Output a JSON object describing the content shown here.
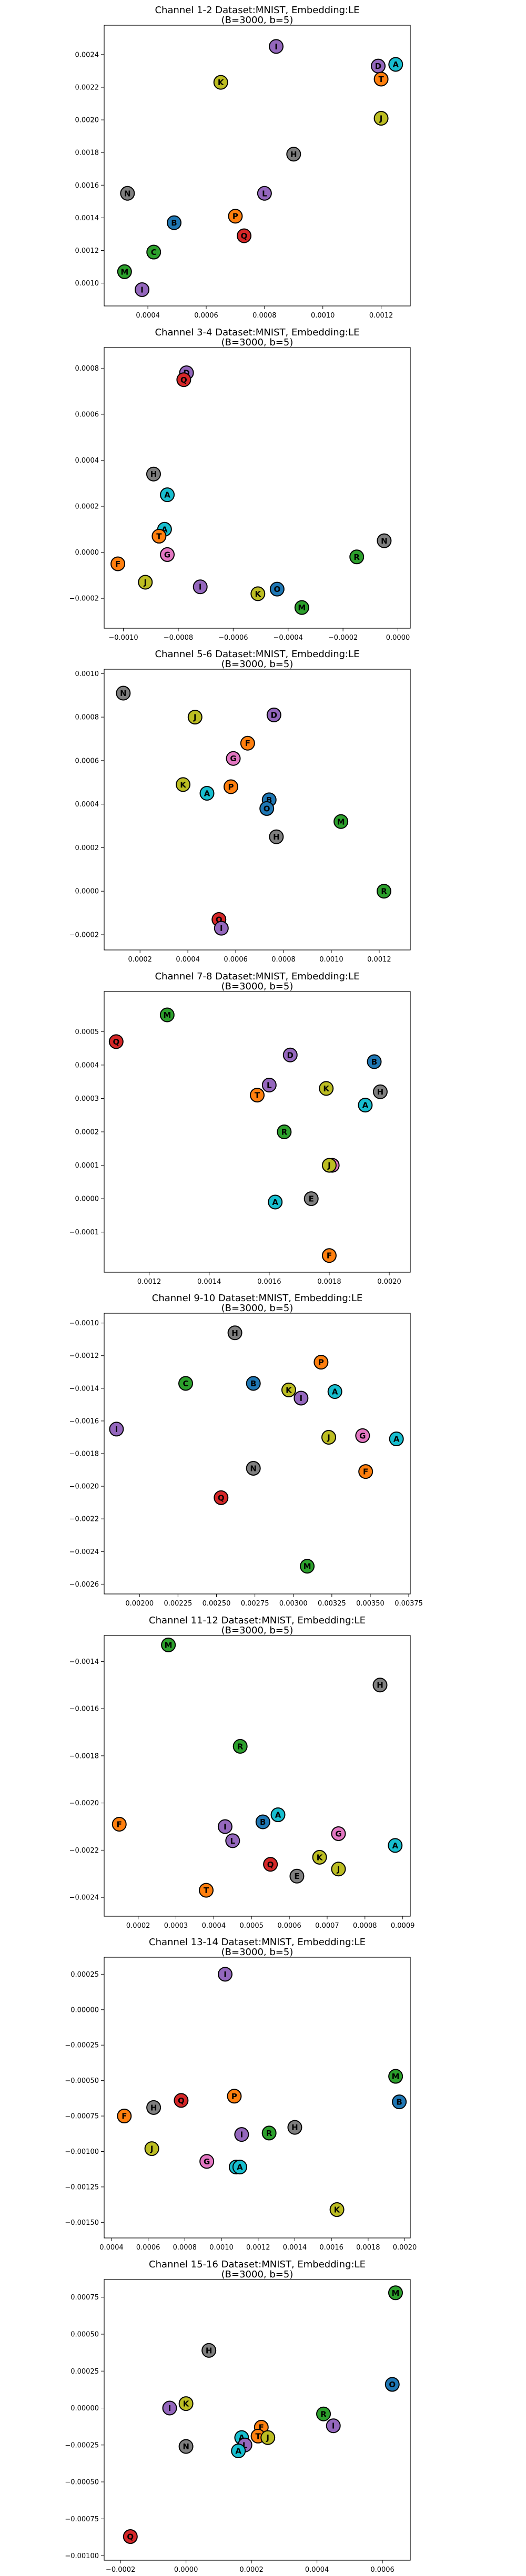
{
  "colors": {
    "axis": "#000000",
    "marker_edge": "#000000",
    "purple": "#9467bd",
    "blue": "#1f77b4",
    "cyan": "#17becf",
    "orange": "#ff7f0e",
    "red": "#d62728",
    "green": "#2ca02c",
    "olive": "#bcbd22",
    "gray": "#7f7f7f",
    "pink": "#e377c2",
    "brown": "#8c564b"
  },
  "marker_legend": {
    "A": "cyan",
    "B": "blue",
    "C": "green",
    "D": "purple",
    "E": "gray",
    "F": "orange",
    "G": "pink",
    "H": "gray",
    "I": "purple",
    "J": "olive",
    "K": "olive",
    "L": "purple",
    "M": "green",
    "N": "gray",
    "O": "blue",
    "P": "orange",
    "Q": "red",
    "R": "green",
    "S": "red",
    "T": "orange"
  },
  "chart_data": [
    {
      "type": "scatter",
      "title": "Channel 1-2 Dataset:MNIST, Embedding:LE",
      "subtitle": "(B=3000, b=5)",
      "xlim": [
        0.00025,
        0.0013
      ],
      "ylim": [
        0.00086,
        0.00258
      ],
      "xticks": [
        0.0004,
        0.0006,
        0.0008,
        0.001,
        0.0012
      ],
      "xtick_labels": [
        "0.0004",
        "0.0006",
        "0.0008",
        "0.0010",
        "0.0012"
      ],
      "yticks": [
        0.001,
        0.0012,
        0.0014,
        0.0016,
        0.0018,
        0.002,
        0.0022,
        0.0024
      ],
      "ytick_labels": [
        "0.0010",
        "0.0012",
        "0.0014",
        "0.0016",
        "0.0018",
        "0.0020",
        "0.0022",
        "0.0024"
      ],
      "points": [
        {
          "label": "I",
          "x": 0.00084,
          "y": 0.00245
        },
        {
          "label": "D",
          "x": 0.00119,
          "y": 0.00233
        },
        {
          "label": "A",
          "x": 0.00125,
          "y": 0.00234
        },
        {
          "label": "T",
          "x": 0.0012,
          "y": 0.00225
        },
        {
          "label": "K",
          "x": 0.00065,
          "y": 0.00223
        },
        {
          "label": "J",
          "x": 0.0012,
          "y": 0.00201
        },
        {
          "label": "H",
          "x": 0.0009,
          "y": 0.00179
        },
        {
          "label": "N",
          "x": 0.00033,
          "y": 0.00155
        },
        {
          "label": "L",
          "x": 0.0008,
          "y": 0.00155
        },
        {
          "label": "P",
          "x": 0.0007,
          "y": 0.00141
        },
        {
          "label": "B",
          "x": 0.00049,
          "y": 0.00137
        },
        {
          "label": "Q",
          "x": 0.00073,
          "y": 0.00129
        },
        {
          "label": "C",
          "x": 0.00042,
          "y": 0.00119
        },
        {
          "label": "M",
          "x": 0.00032,
          "y": 0.00107
        },
        {
          "label": "I",
          "x": 0.00038,
          "y": 0.00096
        }
      ]
    },
    {
      "type": "scatter",
      "title": "Channel 3-4 Dataset:MNIST, Embedding:LE",
      "subtitle": "(B=3000, b=5)",
      "xlim": [
        -0.00107,
        4.5e-05
      ],
      "ylim": [
        -0.00033,
        0.00089
      ],
      "xticks": [
        -0.001,
        -0.0008,
        -0.0006,
        -0.0004,
        -0.0002,
        0.0
      ],
      "xtick_labels": [
        "−0.0010",
        "−0.0008",
        "−0.0006",
        "−0.0004",
        "−0.0002",
        "0.0000"
      ],
      "yticks": [
        -0.0002,
        0.0,
        0.0002,
        0.0004,
        0.0006,
        0.0008
      ],
      "ytick_labels": [
        "−0.0002",
        "0.0000",
        "0.0002",
        "0.0004",
        "0.0006",
        "0.0008"
      ],
      "points": [
        {
          "label": "D",
          "x": -0.00077,
          "y": 0.00078
        },
        {
          "label": "Q",
          "x": -0.00078,
          "y": 0.00075
        },
        {
          "label": "H",
          "x": -0.00089,
          "y": 0.00034
        },
        {
          "label": "A",
          "x": -0.00084,
          "y": 0.00025
        },
        {
          "label": "A",
          "x": -0.00085,
          "y": 0.0001
        },
        {
          "label": "T",
          "x": -0.00087,
          "y": 7e-05
        },
        {
          "label": "N",
          "x": -5e-05,
          "y": 5e-05
        },
        {
          "label": "G",
          "x": -0.00084,
          "y": -1e-05
        },
        {
          "label": "R",
          "x": -0.00015,
          "y": -2e-05
        },
        {
          "label": "F",
          "x": -0.00102,
          "y": -5e-05
        },
        {
          "label": "J",
          "x": -0.00092,
          "y": -0.00013
        },
        {
          "label": "I",
          "x": -0.00072,
          "y": -0.00015
        },
        {
          "label": "O",
          "x": -0.00044,
          "y": -0.00016
        },
        {
          "label": "K",
          "x": -0.00051,
          "y": -0.00018
        },
        {
          "label": "M",
          "x": -0.00035,
          "y": -0.00024
        }
      ]
    },
    {
      "type": "scatter",
      "title": "Channel 5-6 Dataset:MNIST, Embedding:LE",
      "subtitle": "(B=3000, b=5)",
      "xlim": [
        5e-05,
        0.00133
      ],
      "ylim": [
        -0.00027,
        0.00102
      ],
      "xticks": [
        0.0002,
        0.0004,
        0.0006,
        0.0008,
        0.001,
        0.0012
      ],
      "xtick_labels": [
        "0.0002",
        "0.0004",
        "0.0006",
        "0.0008",
        "0.0010",
        "0.0012"
      ],
      "yticks": [
        -0.0002,
        0.0,
        0.0002,
        0.0004,
        0.0006,
        0.0008,
        0.001
      ],
      "ytick_labels": [
        "−0.0002",
        "0.0000",
        "0.0002",
        "0.0004",
        "0.0006",
        "0.0008",
        "0.0010"
      ],
      "points": [
        {
          "label": "N",
          "x": 0.00013,
          "y": 0.00091
        },
        {
          "label": "D",
          "x": 0.00076,
          "y": 0.00081
        },
        {
          "label": "J",
          "x": 0.00043,
          "y": 0.0008
        },
        {
          "label": "F",
          "x": 0.00065,
          "y": 0.00068
        },
        {
          "label": "G",
          "x": 0.00059,
          "y": 0.00061
        },
        {
          "label": "K",
          "x": 0.00038,
          "y": 0.00049
        },
        {
          "label": "P",
          "x": 0.00058,
          "y": 0.00048
        },
        {
          "label": "A",
          "x": 0.00048,
          "y": 0.00045
        },
        {
          "label": "B",
          "x": 0.00074,
          "y": 0.00042
        },
        {
          "label": "O",
          "x": 0.00073,
          "y": 0.00038
        },
        {
          "label": "M",
          "x": 0.00104,
          "y": 0.00032
        },
        {
          "label": "H",
          "x": 0.00077,
          "y": 0.00025
        },
        {
          "label": "R",
          "x": 0.00122,
          "y": 0.0
        },
        {
          "label": "Q",
          "x": 0.00053,
          "y": -0.00013
        },
        {
          "label": "I",
          "x": 0.00054,
          "y": -0.00017
        }
      ]
    },
    {
      "type": "scatter",
      "title": "Channel 7-8 Dataset:MNIST, Embedding:LE",
      "subtitle": "(B=3000, b=5)",
      "xlim": [
        0.00105,
        0.00207
      ],
      "ylim": [
        -0.00022,
        0.00062
      ],
      "xticks": [
        0.0012,
        0.0014,
        0.0016,
        0.0018,
        0.002
      ],
      "xtick_labels": [
        "0.0012",
        "0.0014",
        "0.0016",
        "0.0018",
        "0.0020"
      ],
      "yticks": [
        -0.0001,
        0.0,
        0.0001,
        0.0002,
        0.0003,
        0.0004,
        0.0005
      ],
      "ytick_labels": [
        "−0.0001",
        "0.0000",
        "0.0001",
        "0.0002",
        "0.0003",
        "0.0004",
        "0.0005"
      ],
      "points": [
        {
          "label": "M",
          "x": 0.00126,
          "y": 0.00055
        },
        {
          "label": "Q",
          "x": 0.00109,
          "y": 0.00047
        },
        {
          "label": "D",
          "x": 0.00167,
          "y": 0.00043
        },
        {
          "label": "B",
          "x": 0.00195,
          "y": 0.00041
        },
        {
          "label": "L",
          "x": 0.0016,
          "y": 0.00034
        },
        {
          "label": "K",
          "x": 0.00179,
          "y": 0.00033
        },
        {
          "label": "H",
          "x": 0.00197,
          "y": 0.00032
        },
        {
          "label": "T",
          "x": 0.00156,
          "y": 0.00031
        },
        {
          "label": "A",
          "x": 0.00192,
          "y": 0.00028
        },
        {
          "label": "R",
          "x": 0.00165,
          "y": 0.0002
        },
        {
          "label": "G",
          "x": 0.00181,
          "y": 0.0001
        },
        {
          "label": "J",
          "x": 0.0018,
          "y": 0.0001
        },
        {
          "label": "E",
          "x": 0.00174,
          "y": 0.0
        },
        {
          "label": "A",
          "x": 0.00162,
          "y": -1e-05
        },
        {
          "label": "F",
          "x": 0.0018,
          "y": -0.00017
        }
      ]
    },
    {
      "type": "scatter",
      "title": "Channel 9-10 Dataset:MNIST, Embedding:LE",
      "subtitle": "(B=3000, b=5)",
      "xlim": [
        0.00177,
        0.00376
      ],
      "ylim": [
        -0.00266,
        -0.00094
      ],
      "xticks": [
        0.00175,
        0.002,
        0.00225,
        0.0025,
        0.00275,
        0.003,
        0.00325,
        0.0035,
        0.00375
      ],
      "xtick_labels": [
        "0.00175",
        "0.00200",
        "0.00225",
        "0.00250",
        "0.00275",
        "0.00300",
        "0.00325",
        "0.00350",
        "0.00375"
      ],
      "yticks": [
        -0.0026,
        -0.0024,
        -0.0022,
        -0.002,
        -0.0018,
        -0.0016,
        -0.0014,
        -0.0012,
        -0.001
      ],
      "ytick_labels": [
        "−0.0026",
        "−0.0024",
        "−0.0022",
        "−0.0020",
        "−0.0018",
        "−0.0016",
        "−0.0014",
        "−0.0012",
        "−0.0010"
      ],
      "points": [
        {
          "label": "H",
          "x": 0.00262,
          "y": -0.00106
        },
        {
          "label": "P",
          "x": 0.00318,
          "y": -0.00124
        },
        {
          "label": "C",
          "x": 0.0023,
          "y": -0.00137
        },
        {
          "label": "B",
          "x": 0.00274,
          "y": -0.00137
        },
        {
          "label": "K",
          "x": 0.00297,
          "y": -0.00141
        },
        {
          "label": "A",
          "x": 0.00327,
          "y": -0.00142
        },
        {
          "label": "I",
          "x": 0.00305,
          "y": -0.00146
        },
        {
          "label": "I",
          "x": 0.00185,
          "y": -0.00165
        },
        {
          "label": "G",
          "x": 0.00345,
          "y": -0.00169
        },
        {
          "label": "J",
          "x": 0.00323,
          "y": -0.0017
        },
        {
          "label": "A",
          "x": 0.00367,
          "y": -0.00171
        },
        {
          "label": "N",
          "x": 0.00274,
          "y": -0.00189
        },
        {
          "label": "F",
          "x": 0.00347,
          "y": -0.00191
        },
        {
          "label": "Q",
          "x": 0.00253,
          "y": -0.00207
        },
        {
          "label": "M",
          "x": 0.00309,
          "y": -0.00249
        }
      ]
    },
    {
      "type": "scatter",
      "title": "Channel 11-12 Dataset:MNIST, Embedding:LE",
      "subtitle": "(B=3000, b=5)",
      "xlim": [
        0.00011,
        0.00092
      ],
      "ylim": [
        -0.00248,
        -0.00129
      ],
      "xticks": [
        0.0001,
        0.0002,
        0.0003,
        0.0004,
        0.0005,
        0.0006,
        0.0007,
        0.0008,
        0.0009
      ],
      "xtick_labels": [
        "0.0001",
        "0.0002",
        "0.0003",
        "0.0004",
        "0.0005",
        "0.0006",
        "0.0007",
        "0.0008",
        "0.0009"
      ],
      "yticks": [
        -0.0024,
        -0.0022,
        -0.002,
        -0.0018,
        -0.0016,
        -0.0014
      ],
      "ytick_labels": [
        "−0.0024",
        "−0.0022",
        "−0.0020",
        "−0.0018",
        "−0.0016",
        "−0.0014"
      ],
      "points": [
        {
          "label": "M",
          "x": 0.00028,
          "y": -0.00133
        },
        {
          "label": "H",
          "x": 0.00084,
          "y": -0.0015
        },
        {
          "label": "R",
          "x": 0.00047,
          "y": -0.00176
        },
        {
          "label": "F",
          "x": 0.00015,
          "y": -0.00209
        },
        {
          "label": "A",
          "x": 0.00057,
          "y": -0.00205
        },
        {
          "label": "B",
          "x": 0.00053,
          "y": -0.00208
        },
        {
          "label": "I",
          "x": 0.00043,
          "y": -0.0021
        },
        {
          "label": "G",
          "x": 0.00073,
          "y": -0.00213
        },
        {
          "label": "L",
          "x": 0.00045,
          "y": -0.00216
        },
        {
          "label": "A",
          "x": 0.00088,
          "y": -0.00218
        },
        {
          "label": "K",
          "x": 0.00068,
          "y": -0.00223
        },
        {
          "label": "Q",
          "x": 0.00055,
          "y": -0.00226
        },
        {
          "label": "J",
          "x": 0.00073,
          "y": -0.00228
        },
        {
          "label": "E",
          "x": 0.00062,
          "y": -0.00231
        },
        {
          "label": "T",
          "x": 0.00038,
          "y": -0.00237
        }
      ]
    },
    {
      "type": "scatter",
      "title": "Channel 13-14 Dataset:MNIST, Embedding:LE",
      "subtitle": "(B=3000, b=5)",
      "xlim": [
        0.00036,
        0.00203
      ],
      "ylim": [
        -0.00161,
        0.00037
      ],
      "xticks": [
        0.0004,
        0.0006,
        0.0008,
        0.001,
        0.0012,
        0.0014,
        0.0016,
        0.0018,
        0.002
      ],
      "xtick_labels": [
        "0.0004",
        "0.0006",
        "0.0008",
        "0.0010",
        "0.0012",
        "0.0014",
        "0.0016",
        "0.0018",
        "0.0020"
      ],
      "yticks": [
        -0.0015,
        -0.00125,
        -0.001,
        -0.00075,
        -0.0005,
        -0.00025,
        0.0,
        0.00025
      ],
      "ytick_labels": [
        "−0.00150",
        "−0.00125",
        "−0.00100",
        "−0.00075",
        "−0.00050",
        "−0.00025",
        "0.00000",
        "0.00025"
      ],
      "points": [
        {
          "label": "I",
          "x": 0.00102,
          "y": 0.00025
        },
        {
          "label": "M",
          "x": 0.00195,
          "y": -0.00047
        },
        {
          "label": "B",
          "x": 0.00197,
          "y": -0.00065
        },
        {
          "label": "P",
          "x": 0.00107,
          "y": -0.00061
        },
        {
          "label": "Q",
          "x": 0.00078,
          "y": -0.00064
        },
        {
          "label": "H",
          "x": 0.00063,
          "y": -0.00069
        },
        {
          "label": "F",
          "x": 0.00047,
          "y": -0.00075
        },
        {
          "label": "H",
          "x": 0.0014,
          "y": -0.00083
        },
        {
          "label": "R",
          "x": 0.00126,
          "y": -0.00087
        },
        {
          "label": "I",
          "x": 0.00111,
          "y": -0.00088
        },
        {
          "label": "J",
          "x": 0.00062,
          "y": -0.00098
        },
        {
          "label": "G",
          "x": 0.00092,
          "y": -0.00107
        },
        {
          "label": "A",
          "x": 0.00108,
          "y": -0.00111
        },
        {
          "label": "A",
          "x": 0.0011,
          "y": -0.00111
        },
        {
          "label": "K",
          "x": 0.00163,
          "y": -0.00141
        }
      ]
    },
    {
      "type": "scatter",
      "title": "Channel 15-16 Dataset:MNIST, Embedding:LE",
      "subtitle": "(B=3000, b=5)",
      "xlim": [
        -0.00025,
        0.000685
      ],
      "ylim": [
        -0.00103,
        0.00087
      ],
      "xticks": [
        -0.0002,
        0.0,
        0.0002,
        0.0004,
        0.0006
      ],
      "xtick_labels": [
        "−0.0002",
        "0.0000",
        "0.0002",
        "0.0004",
        "0.0006"
      ],
      "yticks": [
        -0.001,
        -0.00075,
        -0.0005,
        -0.00025,
        0.0,
        0.00025,
        0.0005,
        0.00075
      ],
      "ytick_labels": [
        "−0.00100",
        "−0.00075",
        "−0.00050",
        "−0.00025",
        "0.00000",
        "0.00025",
        "0.00050",
        "0.00075"
      ],
      "points": [
        {
          "label": "M",
          "x": 0.00064,
          "y": 0.00078
        },
        {
          "label": "H",
          "x": 7e-05,
          "y": 0.00039
        },
        {
          "label": "O",
          "x": 0.00063,
          "y": 0.00016
        },
        {
          "label": "K",
          "x": 0.0,
          "y": 3e-05
        },
        {
          "label": "I",
          "x": -5e-05,
          "y": 0.0
        },
        {
          "label": "R",
          "x": 0.00042,
          "y": -4e-05
        },
        {
          "label": "I",
          "x": 0.00045,
          "y": -0.00012
        },
        {
          "label": "F",
          "x": 0.00023,
          "y": -0.00013
        },
        {
          "label": "T",
          "x": 0.00022,
          "y": -0.00019
        },
        {
          "label": "J",
          "x": 0.00025,
          "y": -0.0002
        },
        {
          "label": "A",
          "x": 0.00017,
          "y": -0.0002
        },
        {
          "label": "L",
          "x": 0.00018,
          "y": -0.00025
        },
        {
          "label": "N",
          "x": 0.0,
          "y": -0.00026
        },
        {
          "label": "A",
          "x": 0.00016,
          "y": -0.00029
        },
        {
          "label": "Q",
          "x": -0.00017,
          "y": -0.00087
        }
      ]
    }
  ]
}
